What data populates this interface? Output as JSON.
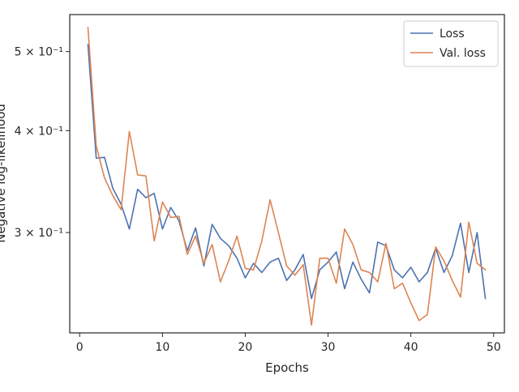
{
  "chart_data": {
    "type": "line",
    "title": "",
    "xlabel": "Epochs",
    "ylabel": "Negative log-likelihood",
    "yscale": "log",
    "xlim": [
      -1.2,
      51.3
    ],
    "ylim": [
      0.226,
      0.555
    ],
    "xticks": [
      0,
      10,
      20,
      30,
      40,
      50
    ],
    "yticks": [
      0.3,
      0.4,
      0.5
    ],
    "ytick_labels": [
      "3 × 10⁻¹",
      "4 × 10⁻¹",
      "5 × 10⁻¹"
    ],
    "grid": false,
    "legend_position": "top-right",
    "x": [
      1,
      2,
      3,
      4,
      5,
      6,
      7,
      8,
      9,
      10,
      11,
      12,
      13,
      14,
      15,
      16,
      17,
      18,
      19,
      20,
      21,
      22,
      23,
      24,
      25,
      26,
      27,
      28,
      29,
      30,
      31,
      32,
      33,
      34,
      35,
      36,
      37,
      38,
      39,
      40,
      41,
      42,
      43,
      44,
      45,
      46,
      47,
      48,
      49
    ],
    "series": [
      {
        "name": "Loss",
        "color": "#4c72b0",
        "values": [
          0.51,
          0.37,
          0.371,
          0.34,
          0.325,
          0.303,
          0.339,
          0.331,
          0.335,
          0.303,
          0.322,
          0.31,
          0.285,
          0.304,
          0.273,
          0.307,
          0.295,
          0.289,
          0.279,
          0.264,
          0.275,
          0.268,
          0.276,
          0.279,
          0.262,
          0.27,
          0.282,
          0.249,
          0.27,
          0.276,
          0.284,
          0.256,
          0.276,
          0.263,
          0.253,
          0.292,
          0.289,
          0.27,
          0.264,
          0.272,
          0.261,
          0.268,
          0.287,
          0.268,
          0.281,
          0.308,
          0.268,
          0.3,
          0.249
        ]
      },
      {
        "name": "Val. loss",
        "color": "#dd8452",
        "values": [
          0.535,
          0.383,
          0.35,
          0.333,
          0.32,
          0.399,
          0.353,
          0.352,
          0.293,
          0.327,
          0.313,
          0.314,
          0.282,
          0.297,
          0.275,
          0.29,
          0.261,
          0.277,
          0.297,
          0.271,
          0.27,
          0.293,
          0.329,
          0.3,
          0.273,
          0.266,
          0.274,
          0.231,
          0.279,
          0.279,
          0.26,
          0.303,
          0.29,
          0.27,
          0.268,
          0.261,
          0.291,
          0.256,
          0.26,
          0.246,
          0.234,
          0.238,
          0.288,
          0.277,
          0.262,
          0.25,
          0.309,
          0.275,
          0.27
        ]
      }
    ]
  }
}
